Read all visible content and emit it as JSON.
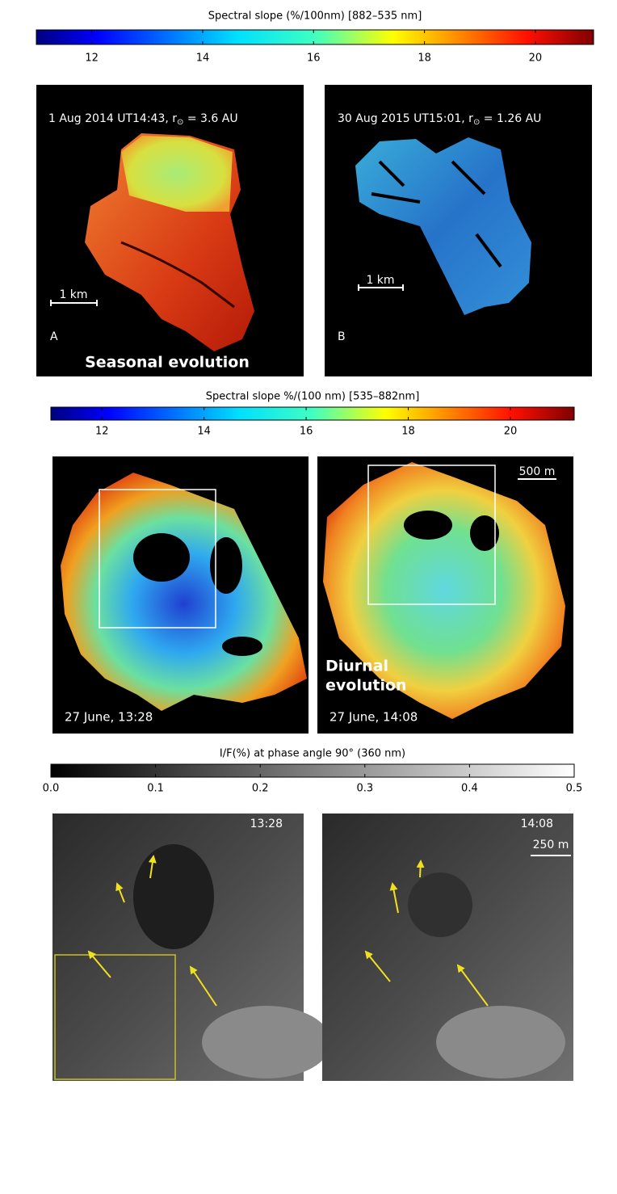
{
  "colorbars": [
    {
      "title": "Spectral slope (%/100nm) [882–535 nm]",
      "colormap": "jet",
      "lim": [
        11,
        21.05
      ],
      "ticks": [
        12,
        14,
        16,
        18,
        20
      ]
    },
    {
      "title": "Spectral slope %/(100 nm) [535–882nm]",
      "colormap": "jet",
      "lim": [
        11,
        21.25
      ],
      "ticks": [
        12,
        14,
        16,
        18,
        20
      ]
    },
    {
      "title": "I/F(%) at phase angle 90° (360 nm)",
      "colormap": "gray",
      "lim": [
        0,
        0.5
      ],
      "ticks": [
        {
          "value": 0,
          "label": "0.0"
        },
        0.1,
        0.2,
        0.3,
        0.4,
        0.5
      ]
    }
  ],
  "panel_a": {
    "caption": "1 Aug 2014 UT14:43, r",
    "caption_sub": "⊙",
    "caption_end": " = 3.6 AU",
    "scale": "1 km",
    "letter": "A",
    "label": "Seasonal evolution"
  },
  "panel_b": {
    "caption": "30 Aug 2015 UT15:01, r",
    "caption_sub": "⊙",
    "caption_end": " = 1.26 AU",
    "scale": "1 km",
    "letter": "B"
  },
  "panel_c": {
    "caption": "27 June, 13:28"
  },
  "panel_d": {
    "caption": "27 June, 14:08",
    "scale": "500 m",
    "label": [
      "Diurnal",
      "evolution"
    ]
  },
  "panel_e": {
    "caption": "13:28"
  },
  "panel_f": {
    "caption": "14:08",
    "scale": "250 m"
  }
}
